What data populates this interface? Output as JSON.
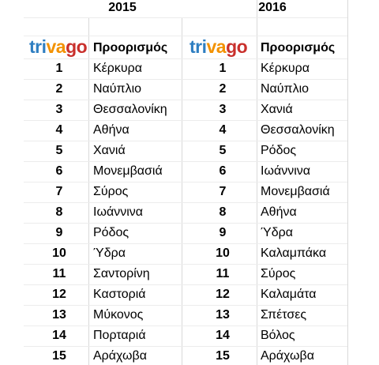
{
  "tables": [
    {
      "year": "2015",
      "logo": [
        "tri",
        "va",
        "go"
      ],
      "header": "Προορισμός",
      "rows": [
        [
          "1",
          "Κέρκυρα"
        ],
        [
          "2",
          "Ναύπλιο"
        ],
        [
          "3",
          "Θεσσαλονίκη"
        ],
        [
          "4",
          "Αθήνα"
        ],
        [
          "5",
          "Χανιά"
        ],
        [
          "6",
          "Μονεμβασιά"
        ],
        [
          "7",
          "Σύρος"
        ],
        [
          "8",
          "Ιωάννινα"
        ],
        [
          "9",
          "Ρόδος"
        ],
        [
          "10",
          "Ύδρα"
        ],
        [
          "11",
          "Σαντορίνη"
        ],
        [
          "12",
          "Καστοριά"
        ],
        [
          "13",
          "Μύκονος"
        ],
        [
          "14",
          "Πορταριά"
        ],
        [
          "15",
          "Αράχωβα"
        ]
      ]
    },
    {
      "year": "2016",
      "logo": [
        "tri",
        "va",
        "go"
      ],
      "header": "Προορισμός",
      "rows": [
        [
          "1",
          "Κέρκυρα"
        ],
        [
          "2",
          "Ναύπλιο"
        ],
        [
          "3",
          "Χανιά"
        ],
        [
          "4",
          "Θεσσαλονίκη"
        ],
        [
          "5",
          "Ρόδος"
        ],
        [
          "6",
          "Ιωάννινα"
        ],
        [
          "7",
          "Μονεμβασιά"
        ],
        [
          "8",
          "Αθήνα"
        ],
        [
          "9",
          "Ύδρα"
        ],
        [
          "10",
          "Καλαμπάκα"
        ],
        [
          "11",
          "Σύρος"
        ],
        [
          "12",
          "Καλαμάτα"
        ],
        [
          "13",
          "Σπέτσες"
        ],
        [
          "14",
          "Βόλος"
        ],
        [
          "15",
          "Αράχωβα"
        ]
      ]
    }
  ]
}
